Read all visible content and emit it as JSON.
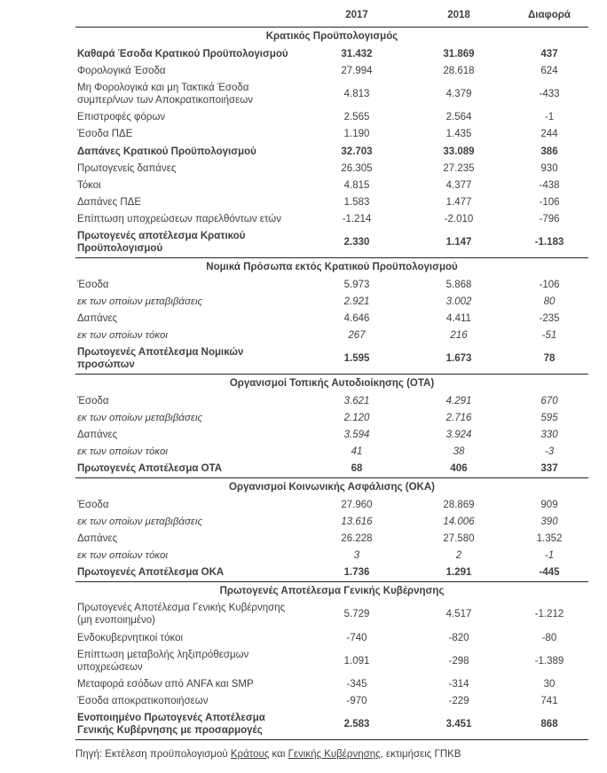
{
  "accent_text_color": "#3f3f3f",
  "rule_color": "#262626",
  "table": {
    "columns": [
      "2017",
      "2018",
      "Διαφορά"
    ],
    "sections": [
      {
        "title": "Κρατικός Προϋπολογισμός",
        "rows": [
          {
            "label": "Καθαρά Έσοδα Κρατικού Προϋπολογισμού",
            "values": [
              "31.432",
              "31.869",
              "437"
            ],
            "style": "bold"
          },
          {
            "label": "Φορολογικά Έσοδα",
            "values": [
              "27.994",
              "28.618",
              "624"
            ],
            "style": "normal"
          },
          {
            "label": "Μη Φορολογικά και μη Τακτικά Έσοδα\nσυμπερ/νων των Αποκρατικοποιήσεων",
            "values": [
              "4.813",
              "4.379",
              "-433"
            ],
            "style": "normal"
          },
          {
            "label": "Επιστροφές φόρων",
            "values": [
              "2.565",
              "2.564",
              "-1"
            ],
            "style": "normal"
          },
          {
            "label": "Έσοδα ΠΔΕ",
            "values": [
              "1.190",
              "1.435",
              "244"
            ],
            "style": "normal"
          },
          {
            "label": "Δαπάνες Κρατικού Προϋπολογισμού",
            "values": [
              "32.703",
              "33.089",
              "386"
            ],
            "style": "bold"
          },
          {
            "label": "Πρωτογενείς δαπάνες",
            "values": [
              "26.305",
              "27.235",
              "930"
            ],
            "style": "normal"
          },
          {
            "label": "Τόκοι",
            "values": [
              "4.815",
              "4.377",
              "-438"
            ],
            "style": "normal"
          },
          {
            "label": "Δαπάνες ΠΔΕ",
            "values": [
              "1.583",
              "1.477",
              "-106"
            ],
            "style": "normal"
          },
          {
            "label": "Επίπτωση υποχρεώσεων παρελθόντων ετών",
            "values": [
              "-1.214",
              "-2.010",
              "-796"
            ],
            "style": "normal"
          },
          {
            "label": "Πρωτογενές αποτέλεσμα Κρατικού\nΠροϋπολογισμού",
            "values": [
              "2.330",
              "1.147",
              "-1.183"
            ],
            "style": "bold"
          }
        ]
      },
      {
        "title": "Νομικά Πρόσωπα εκτός Κρατικού Προϋπολογισμού",
        "rows": [
          {
            "label": "Έσοδα",
            "values": [
              "5.973",
              "5.868",
              "-106"
            ],
            "style": "normal"
          },
          {
            "label": "εκ των οποίων μεταβιβάσεις",
            "values": [
              "2.921",
              "3.002",
              "80"
            ],
            "style": "italic"
          },
          {
            "label": "Δαπάνες",
            "values": [
              "4.646",
              "4.411",
              "-235"
            ],
            "style": "normal"
          },
          {
            "label": "εκ των οποίων τόκοι",
            "values": [
              "267",
              "216",
              "-51"
            ],
            "style": "italic"
          },
          {
            "label": "Πρωτογενές Αποτέλεσμα Νομικών\nπροσώπων",
            "values": [
              "1.595",
              "1.673",
              "78"
            ],
            "style": "bold"
          }
        ]
      },
      {
        "title": "Οργανισμοί Τοπικής Αυτοδιοίκησης (ΟΤΑ)",
        "rows": [
          {
            "label": "Έσοδα",
            "values": [
              "3.621",
              "4.291",
              "670"
            ],
            "style": "numitalic"
          },
          {
            "label": "εκ των οποίων μεταβιβάσεις",
            "values": [
              "2.120",
              "2.716",
              "595"
            ],
            "style": "italic"
          },
          {
            "label": "Δαπάνες",
            "values": [
              "3.594",
              "3.924",
              "330"
            ],
            "style": "numitalic"
          },
          {
            "label": "εκ των οποίων τόκοι",
            "values": [
              "41",
              "38",
              "-3"
            ],
            "style": "italic"
          },
          {
            "label": "Πρωτογενές Αποτέλεσμα ΟΤΑ",
            "values": [
              "68",
              "406",
              "337"
            ],
            "style": "bold"
          }
        ]
      },
      {
        "title": "Οργανισμοί Κοινωνικής Ασφάλισης (ΟΚΑ)",
        "rows": [
          {
            "label": "Έσοδα",
            "values": [
              "27.960",
              "28.869",
              "909"
            ],
            "style": "normal"
          },
          {
            "label": "εκ των οποίων μεταβιβάσεις",
            "values": [
              "13.616",
              "14.006",
              "390"
            ],
            "style": "italic"
          },
          {
            "label": "Δαπάνες",
            "values": [
              "26.228",
              "27.580",
              "1.352"
            ],
            "style": "normal"
          },
          {
            "label": "εκ των οποίων τόκοι",
            "values": [
              "3",
              "2",
              "-1"
            ],
            "style": "italic"
          },
          {
            "label": "Πρωτογενές Αποτέλεσμα ΟΚΑ",
            "values": [
              "1.736",
              "1.291",
              "-445"
            ],
            "style": "bold"
          }
        ]
      },
      {
        "title": "Πρωτογενές Αποτέλεσμα Γενικής Κυβέρνησης",
        "rows": [
          {
            "label": "Πρωτογενές Αποτέλεσμα Γενικής Κυβέρνησης\n(μη ενοποιημένο)",
            "values": [
              "5.729",
              "4.517",
              "-1.212"
            ],
            "style": "normal"
          },
          {
            "label": "Ενδοκυβερνητικοί τόκοι",
            "values": [
              "-740",
              "-820",
              "-80"
            ],
            "style": "normal"
          },
          {
            "label": "Επίπτωση μεταβολής ληξιπρόθεσμων\nυποχρεώσεων",
            "values": [
              "1.091",
              "-298",
              "-1.389"
            ],
            "style": "normal"
          },
          {
            "label": "Μεταφορά εσόδων από ANFA και SMP",
            "values": [
              "-345",
              "-314",
              "30"
            ],
            "style": "normal"
          },
          {
            "label": "Έσοδα αποκρατικοποιήσεων",
            "values": [
              "-970",
              "-229",
              "741"
            ],
            "style": "normal"
          },
          {
            "label": "Ενοποιημένο Πρωτογενές Αποτέλεσμα\nΓενικής Κυβέρνησης με προσαρμογές",
            "values": [
              "2.583",
              "3.451",
              "868"
            ],
            "style": "bold"
          }
        ]
      }
    ]
  },
  "footer": {
    "prefix": "Πηγή: Εκτέλεση προϋπολογισμού ",
    "link_state": "Κράτους",
    "connector": " και ",
    "link_general_government": "Γενικής Κυβέρνησης",
    "suffix": ", εκτιμήσεις ΓΠΚΒ"
  }
}
